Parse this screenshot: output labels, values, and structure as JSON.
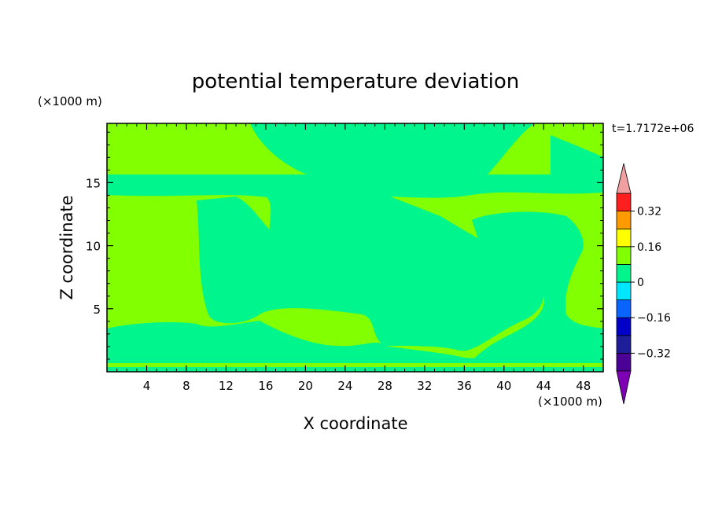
{
  "chart_data": {
    "type": "heatmap",
    "title": "potential temperature deviation",
    "xlabel": "X coordinate",
    "ylabel": "Z coordinate",
    "x_unit": "(×1000 m)",
    "y_unit": "(×1000 m)",
    "time_label": "t=1.7172e+06",
    "xlim": [
      0,
      50
    ],
    "ylim": [
      0,
      19.7
    ],
    "x_ticks": [
      4,
      8,
      12,
      16,
      20,
      24,
      28,
      32,
      36,
      40,
      44,
      48
    ],
    "y_ticks": [
      5,
      10,
      15
    ],
    "colorbar": {
      "levels": [
        -0.4,
        -0.32,
        -0.24,
        -0.16,
        -0.08,
        0,
        0.08,
        0.16,
        0.24,
        0.32,
        0.4
      ],
      "tick_labels": [
        "0.32",
        "0.16",
        "0",
        "−0.16",
        "−0.32"
      ],
      "tick_values": [
        0.32,
        0.16,
        0,
        -0.16,
        -0.32
      ],
      "colors": [
        "#4b0096",
        "#1e1e9b",
        "#0000c8",
        "#0a64ff",
        "#00e6ff",
        "#00f58c",
        "#82ff00",
        "#ffff00",
        "#ff9b00",
        "#ff1e1e"
      ],
      "under_color": "#7d00b4",
      "over_color": "#f0a0a0"
    },
    "fields": {
      "background_color": "#82ff00",
      "negative_color": "#00f58c"
    }
  }
}
